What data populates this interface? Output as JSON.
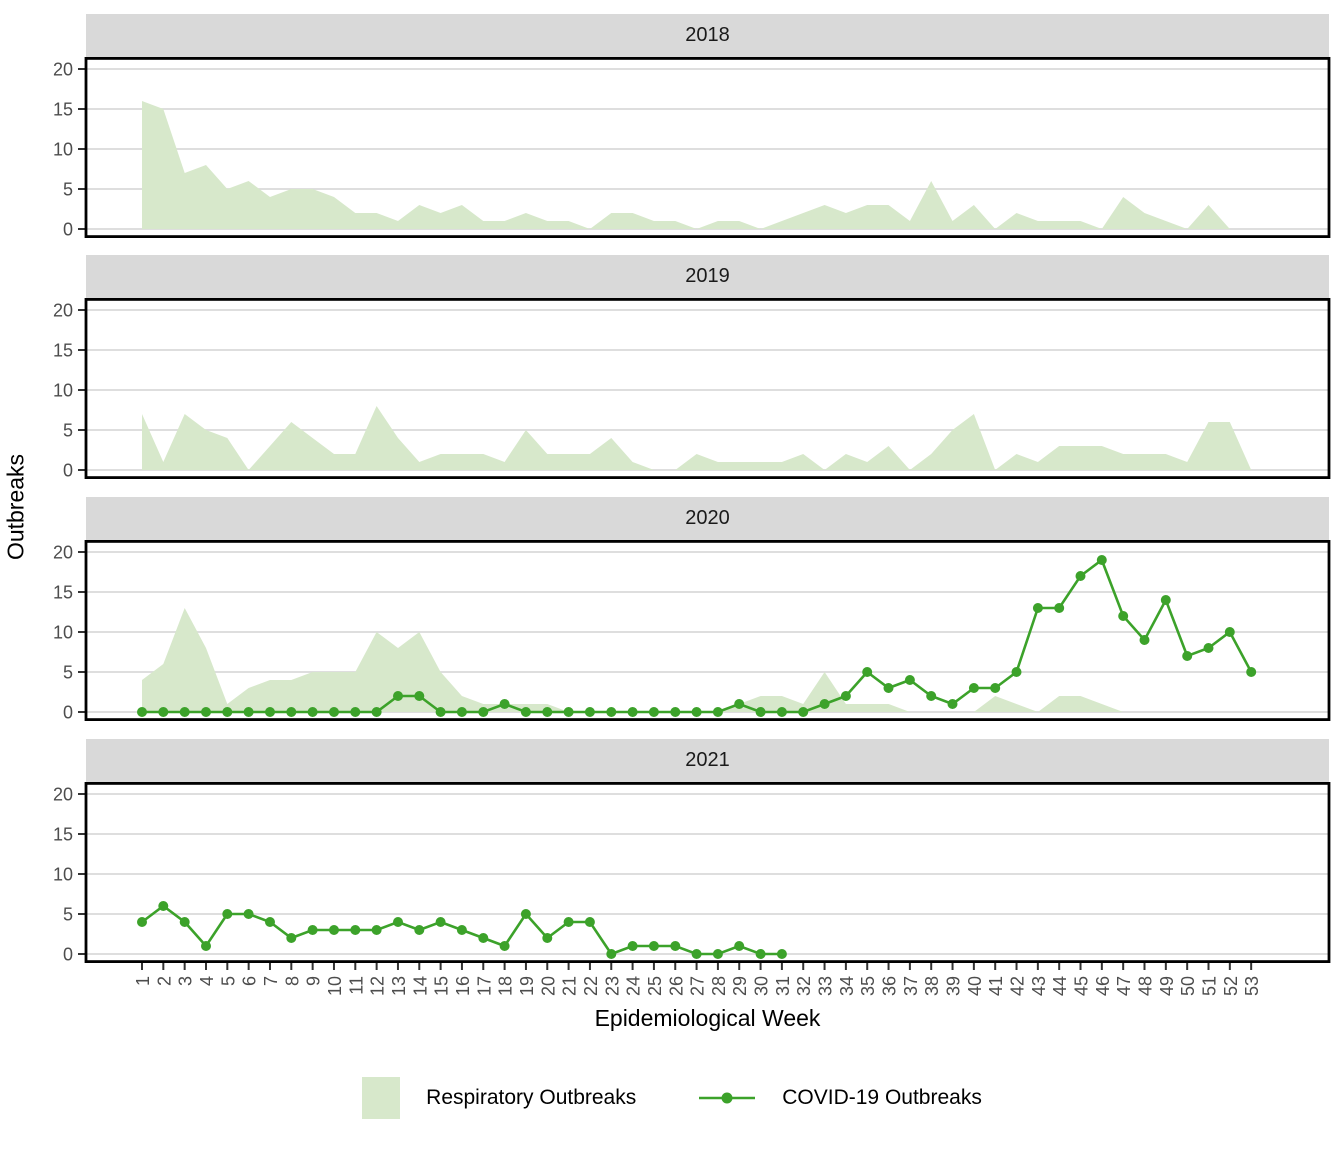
{
  "y_axis": {
    "title": "Outbreaks",
    "tick_values": [
      0,
      5,
      10,
      15,
      20
    ]
  },
  "x_axis": {
    "title": "Epidemiological Week",
    "weeks": [
      1,
      2,
      3,
      4,
      5,
      6,
      7,
      8,
      9,
      10,
      11,
      12,
      13,
      14,
      15,
      16,
      17,
      18,
      19,
      20,
      21,
      22,
      23,
      24,
      25,
      26,
      27,
      28,
      29,
      30,
      31,
      32,
      33,
      34,
      35,
      36,
      37,
      38,
      39,
      40,
      41,
      42,
      43,
      44,
      45,
      46,
      47,
      48,
      49,
      50,
      51,
      52,
      53
    ]
  },
  "legend": [
    {
      "label": "Respiratory Outbreaks",
      "type": "area"
    },
    {
      "label": "COVID-19 Outbreaks",
      "type": "line"
    }
  ],
  "colors": {
    "area_fill": "#d7e8cb",
    "line": "#3ca22a",
    "grid": "#d9d9d9",
    "strip_bg": "#d9d9d9",
    "axis_text": "#4d4d4d",
    "tick_mark": "#333333",
    "panel_border": "#000000"
  },
  "chart_data": {
    "type": "area",
    "subtype": "faceted area + line, facets by year",
    "xlabel": "Epidemiological Week",
    "ylabel": "Outbreaks",
    "ylim": [
      0,
      20
    ],
    "x_range": [
      1,
      53
    ],
    "grid": "horizontal-only",
    "legend_position": "bottom",
    "series_names": [
      "Respiratory Outbreaks",
      "COVID-19 Outbreaks"
    ],
    "facets": [
      {
        "year": "2018",
        "respiratory": [
          16,
          15,
          7,
          8,
          5,
          6,
          4,
          5,
          5,
          4,
          2,
          2,
          1,
          3,
          2,
          3,
          1,
          1,
          2,
          1,
          1,
          0,
          2,
          2,
          1,
          1,
          0,
          1,
          1,
          0,
          1,
          2,
          3,
          2,
          3,
          3,
          1,
          6,
          1,
          3,
          0,
          2,
          1,
          1,
          1,
          0,
          4,
          2,
          1,
          0,
          3,
          0,
          0
        ],
        "covid": null
      },
      {
        "year": "2019",
        "respiratory": [
          7,
          1,
          7,
          5,
          4,
          0,
          3,
          6,
          4,
          2,
          2,
          8,
          4,
          1,
          2,
          2,
          2,
          1,
          5,
          2,
          2,
          2,
          4,
          1,
          0,
          0,
          2,
          1,
          1,
          1,
          1,
          2,
          0,
          2,
          1,
          3,
          0,
          2,
          5,
          7,
          0,
          2,
          1,
          3,
          3,
          3,
          2,
          2,
          2,
          1,
          6,
          6,
          0
        ],
        "covid": null
      },
      {
        "year": "2020",
        "respiratory": [
          4,
          6,
          13,
          8,
          1,
          3,
          4,
          4,
          5,
          5,
          5,
          10,
          8,
          10,
          5,
          2,
          1,
          1,
          1,
          1,
          0,
          0,
          0,
          0,
          0,
          0,
          0,
          0,
          1,
          2,
          2,
          1,
          5,
          1,
          1,
          1,
          0,
          0,
          0,
          0,
          2,
          1,
          0,
          2,
          2,
          1,
          0,
          0,
          0,
          0,
          0,
          0,
          0
        ],
        "covid": [
          0,
          0,
          0,
          0,
          0,
          0,
          0,
          0,
          0,
          0,
          0,
          0,
          2,
          2,
          0,
          0,
          0,
          1,
          0,
          0,
          0,
          0,
          0,
          0,
          0,
          0,
          0,
          0,
          1,
          0,
          0,
          0,
          1,
          2,
          5,
          3,
          4,
          2,
          1,
          3,
          3,
          5,
          13,
          13,
          17,
          19,
          12,
          9,
          14,
          7,
          8,
          10,
          5
        ]
      },
      {
        "year": "2021",
        "respiratory": null,
        "covid": [
          4,
          6,
          4,
          1,
          5,
          5,
          4,
          2,
          3,
          3,
          3,
          3,
          4,
          3,
          4,
          3,
          2,
          1,
          5,
          2,
          4,
          4,
          0,
          1,
          1,
          1,
          0,
          0,
          1,
          0,
          0
        ]
      }
    ]
  }
}
